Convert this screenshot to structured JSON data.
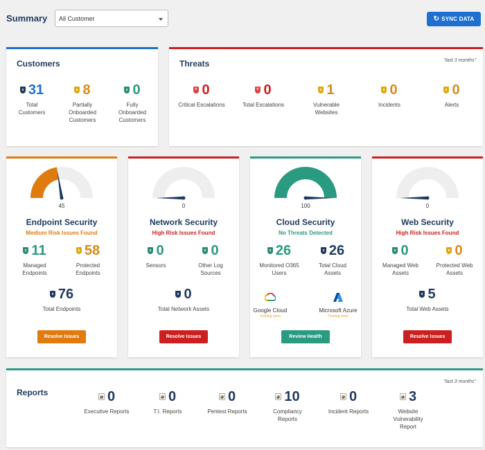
{
  "header": {
    "title": "Summary",
    "customer_select": "All Customer",
    "sync_label": "SYNC DATA"
  },
  "colors": {
    "navy": "#1e3a5f",
    "blue": "#1e6fd0",
    "orange": "#e07b10",
    "red": "#cc1f1f",
    "teal": "#2a9a80"
  },
  "customers": {
    "title": "Customers",
    "stats": [
      {
        "value": "31",
        "label": [
          "Total",
          "Customers"
        ],
        "icon": "shield-icon"
      },
      {
        "value": "8",
        "label": [
          "Partially",
          "Onboarded",
          "Customers"
        ],
        "icon": "shield-icon"
      },
      {
        "value": "0",
        "label": [
          "Fully",
          "Onboarded",
          "Customers"
        ],
        "icon": "shield-icon"
      }
    ]
  },
  "threats": {
    "title": "Threats",
    "note": "\"last 3 months\"",
    "stats": [
      {
        "value": "0",
        "label": "Critical Escalations"
      },
      {
        "value": "0",
        "label": "Total Escalations"
      },
      {
        "value": "1",
        "label": [
          "Vulnerable",
          "Websites"
        ]
      },
      {
        "value": "0",
        "label": "Incidents"
      },
      {
        "value": "0",
        "label": "Alerts"
      }
    ]
  },
  "endpoint": {
    "title": "Endpoint Security",
    "status": "Medium Risk Issues Found",
    "gauge_value": "45",
    "gauge_level": 0.45,
    "stats": [
      {
        "value": "11",
        "label": [
          "Managed",
          "Endpoints"
        ]
      },
      {
        "value": "58",
        "label": [
          "Protected",
          "Endpoints"
        ]
      },
      {
        "value": "76",
        "label": "Total Endpoints"
      }
    ],
    "button": "Resolve Issues"
  },
  "network": {
    "title": "Network Security",
    "status": "High Risk Issues Found",
    "gauge_value": "0",
    "gauge_level": 0,
    "stats": [
      {
        "value": "0",
        "label": "Sensors"
      },
      {
        "value": "0",
        "label": [
          "Other Log",
          "Sources"
        ]
      },
      {
        "value": "0",
        "label": "Total Network Assets"
      }
    ],
    "button": "Resolve Issues"
  },
  "cloud": {
    "title": "Cloud Security",
    "status": "No Threats Detected",
    "gauge_value": "100",
    "gauge_level": 1,
    "stats": [
      {
        "value": "26",
        "label": [
          "Monitored O365",
          "Users"
        ]
      },
      {
        "value": "26",
        "label": [
          "Total Cloud",
          "Assets"
        ]
      }
    ],
    "providers": [
      {
        "name": "Google Cloud",
        "note": "Coming soon"
      },
      {
        "name": "Microsoft Azure",
        "note": "Coming soon"
      }
    ],
    "button": "Review Health"
  },
  "web": {
    "title": "Web Security",
    "status": "High Risk Issues Found",
    "gauge_value": "0",
    "gauge_level": 0,
    "stats": [
      {
        "value": "0",
        "label": [
          "Managed Web",
          "Assets"
        ]
      },
      {
        "value": "0",
        "label": [
          "Protected Web",
          "Assets"
        ]
      },
      {
        "value": "5",
        "label": "Total Web Assets"
      }
    ],
    "button": "Resolve Issues"
  },
  "reports": {
    "title": "Reports",
    "note": "\"last 3 months\"",
    "items": [
      {
        "value": "0",
        "label": "Executive Reports"
      },
      {
        "value": "0",
        "label": "T.I. Reports"
      },
      {
        "value": "0",
        "label": "Pentest Reports"
      },
      {
        "value": "10",
        "label": [
          "Compliancy",
          "Reports"
        ]
      },
      {
        "value": "0",
        "label": "Incident Reports"
      },
      {
        "value": "3",
        "label": [
          "Website",
          "Vulnerability",
          "Report"
        ]
      }
    ]
  }
}
